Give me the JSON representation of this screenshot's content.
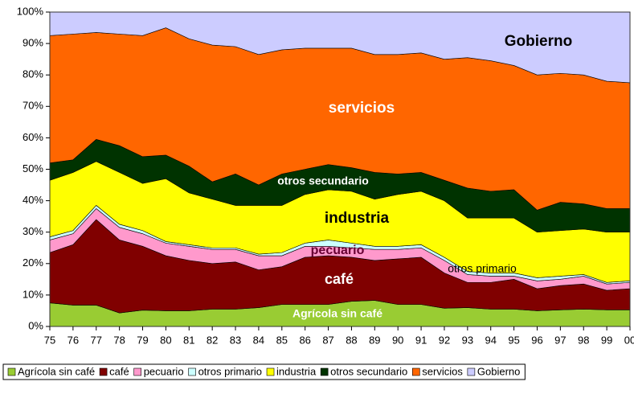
{
  "chart_data": {
    "type": "stacked_area",
    "categories": [
      "75",
      "76",
      "77",
      "78",
      "79",
      "80",
      "81",
      "82",
      "83",
      "84",
      "85",
      "86",
      "87",
      "88",
      "89",
      "90",
      "91",
      "92",
      "93",
      "94",
      "95",
      "96",
      "97",
      "98",
      "99",
      "00"
    ],
    "series": [
      {
        "name": "Agrícola sin café",
        "color": "#99cc33",
        "values": [
          7.5,
          6.8,
          6.8,
          4.3,
          5.2,
          5,
          5,
          5.5,
          5.5,
          6,
          7,
          7,
          7,
          8,
          8.3,
          7,
          7,
          5.8,
          6,
          5.5,
          5.5,
          5,
          5.3,
          5.5,
          5.3,
          5.3
        ]
      },
      {
        "name": "café",
        "color": "#800000",
        "values": [
          16,
          19.2,
          27.2,
          23.2,
          20.3,
          17.5,
          16,
          14.5,
          15,
          12,
          12,
          15,
          15.5,
          14,
          12.7,
          14.5,
          15,
          11.2,
          8,
          8.5,
          9.5,
          7,
          7.7,
          8,
          6.2,
          6.7
        ]
      },
      {
        "name": "pecuario",
        "color": "#ff99cc",
        "values": [
          4,
          3.5,
          3.5,
          4,
          4,
          4,
          4.5,
          4.5,
          4,
          4.5,
          3.5,
          3.5,
          3,
          3,
          3.5,
          3,
          3,
          4,
          2.5,
          2,
          1,
          2.5,
          2,
          2.5,
          2,
          2
        ]
      },
      {
        "name": "otros primario",
        "color": "#ccffff",
        "values": [
          1,
          1,
          1,
          1,
          1,
          0.5,
          0.5,
          0.5,
          0.5,
          0.5,
          1,
          1,
          2,
          1.5,
          1,
          1,
          1,
          1,
          1,
          1,
          1,
          1,
          1,
          0.5,
          0.5,
          0.5
        ]
      },
      {
        "name": "industria",
        "color": "#ffff00",
        "values": [
          18,
          18.5,
          14,
          16.5,
          15,
          20,
          16.5,
          15.5,
          13.5,
          15.5,
          15,
          15.5,
          16,
          16.5,
          15,
          16.5,
          17,
          18,
          17,
          17.5,
          17.5,
          14.5,
          14.5,
          14.5,
          16,
          15.5
        ]
      },
      {
        "name": "otros secundario",
        "color": "#003300",
        "values": [
          5.5,
          4,
          7,
          8.5,
          8.5,
          7.5,
          8.5,
          5.5,
          10,
          6.5,
          10,
          8,
          8,
          7.5,
          8.5,
          6.5,
          6,
          6.5,
          9.5,
          8.5,
          9,
          7,
          9,
          8,
          7.5,
          7.5
        ]
      },
      {
        "name": "servicios",
        "color": "#ff6600",
        "values": [
          40.5,
          40,
          34,
          35.5,
          38.5,
          40.5,
          40.5,
          43.5,
          40.5,
          41.5,
          39.5,
          38.5,
          37,
          38,
          37.5,
          38,
          38,
          38.5,
          41.5,
          41.5,
          39.5,
          43,
          41,
          41,
          40.5,
          40
        ]
      },
      {
        "name": "Gobierno",
        "color": "#ccccff",
        "values": [
          7.5,
          7,
          6.5,
          7,
          7.5,
          5,
          8.5,
          10.5,
          11,
          13.5,
          12,
          11.5,
          11.5,
          11.5,
          13.5,
          13.5,
          13,
          15,
          14.5,
          15.5,
          17,
          20,
          19.5,
          20,
          22,
          22.5
        ]
      }
    ],
    "ylim": [
      0,
      100
    ],
    "yticks": [
      {
        "value": 0,
        "label": "0%"
      },
      {
        "value": 10,
        "label": "10%"
      },
      {
        "value": 20,
        "label": "20%"
      },
      {
        "value": 30,
        "label": "30%"
      },
      {
        "value": 40,
        "label": "40%"
      },
      {
        "value": 50,
        "label": "50%"
      },
      {
        "value": 60,
        "label": "60%"
      },
      {
        "value": 70,
        "label": "70%"
      },
      {
        "value": 80,
        "label": "80%"
      },
      {
        "value": 90,
        "label": "90%"
      },
      {
        "value": 100,
        "label": "100%"
      }
    ],
    "legend": "bottom"
  }
}
